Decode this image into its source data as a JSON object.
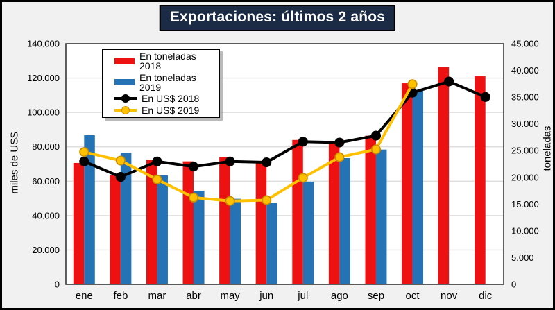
{
  "title": "Exportaciones: últimos 2 años",
  "colors": {
    "background": "#F1F1F1",
    "frame_border": "#000000",
    "title_bg": "#1B2B45",
    "title_text": "#FFFFFF",
    "plot_bg": "#FFFFFF",
    "plot_border": "#2B2B2B",
    "gridline": "#D9D9D9",
    "axis_text": "#000000"
  },
  "chart_data": {
    "type": "combo",
    "title": "Exportaciones: últimos 2 años",
    "categories": [
      "ene",
      "feb",
      "mar",
      "abr",
      "may",
      "jun",
      "jul",
      "ago",
      "sep",
      "oct",
      "nov",
      "dic"
    ],
    "series": [
      {
        "name": "En toneladas 2018",
        "type": "bar",
        "axis": "right",
        "color": "#EE1111",
        "values": [
          22700,
          20400,
          23300,
          23000,
          23800,
          23000,
          27000,
          26300,
          27800,
          37600,
          40700,
          38900
        ]
      },
      {
        "name": "En toneladas 2019",
        "type": "bar",
        "axis": "right",
        "color": "#2573B5",
        "values": [
          27900,
          24600,
          20400,
          17500,
          16000,
          15300,
          19200,
          23600,
          25200,
          36200,
          null,
          null
        ]
      },
      {
        "name": "En US$ 2018",
        "type": "line",
        "axis": "left",
        "color": "#000000",
        "marker_fill": "#000000",
        "marker_stroke": "#000000",
        "values": [
          71500,
          62500,
          71500,
          68500,
          71500,
          71000,
          83000,
          82500,
          86500,
          111500,
          118000,
          109000
        ]
      },
      {
        "name": "En US$ 2019",
        "type": "line",
        "axis": "left",
        "color": "#FFC000",
        "marker_fill": "#FFC000",
        "marker_stroke": "#C88E00",
        "values": [
          77000,
          72000,
          61000,
          50500,
          48500,
          49000,
          62000,
          74000,
          78500,
          116500,
          null,
          null
        ]
      }
    ],
    "left_axis": {
      "label": "miles de US$",
      "min": 0,
      "max": 140000,
      "step": 20000,
      "tick_labels": [
        "0",
        "20.000",
        "40.000",
        "60.000",
        "80.000",
        "100.000",
        "120.000",
        "140.000"
      ]
    },
    "right_axis": {
      "label": "toneladas",
      "min": 0,
      "max": 45000,
      "step": 5000,
      "tick_labels": [
        "0",
        "5.000",
        "10.000",
        "15.000",
        "20.000",
        "25.000",
        "30.000",
        "35.000",
        "40.000",
        "45.000"
      ]
    },
    "grid": true,
    "legend_position": "inside-top-left"
  }
}
